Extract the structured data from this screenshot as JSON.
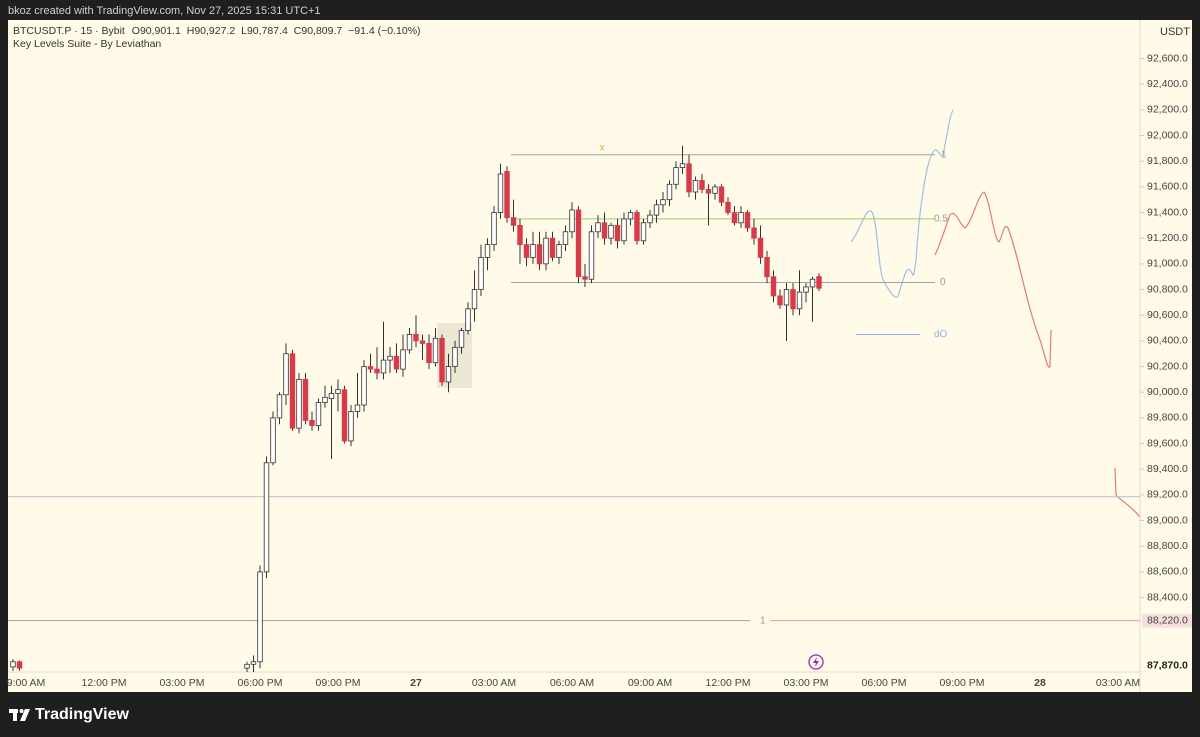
{
  "header": {
    "caption": "bkoz created with TradingView.com, Nov 27, 2025 15:31 UTC+1"
  },
  "footer": {
    "brand": "TradingView"
  },
  "chart_data": {
    "type": "candlestick",
    "symbol": "BTCUSDT.P · 15 · Bybit",
    "ohlc_legend": [
      {
        "key": "O",
        "text": "90,901.1"
      },
      {
        "key": "H",
        "text": "90,927.2"
      },
      {
        "key": "L",
        "text": "90,787.4"
      },
      {
        "key": "C",
        "text": "90,809.7"
      }
    ],
    "change": "−91.4 (−0.10%)",
    "indicator": "Key Levels Suite - By Leviathan",
    "currency": "USDT",
    "up_color": "#ffffff",
    "down_color": "#d93a4a",
    "wick_color": "#333333",
    "grid": false,
    "categories": [
      null,
      null,
      "9:00 AM",
      null,
      null,
      null,
      null,
      null,
      null,
      null,
      null,
      null,
      null,
      null,
      "12:00 PM",
      null,
      null,
      null,
      null,
      null,
      null,
      null,
      null,
      null,
      null,
      null,
      "03:00 PM",
      null,
      null,
      null,
      null,
      null,
      null,
      null,
      null,
      null,
      null,
      null,
      "06:00 PM",
      null,
      null,
      null,
      null,
      null,
      null,
      null,
      null,
      null,
      null,
      null,
      "09:00 PM",
      null,
      null,
      null,
      null,
      null,
      null,
      null,
      null,
      null,
      null,
      null,
      "27",
      null,
      null,
      null,
      null,
      null,
      null,
      null,
      null,
      null,
      null,
      null,
      "03:00 AM",
      null,
      null,
      null,
      null,
      null,
      null,
      null,
      null,
      null,
      null,
      null,
      "06:00 AM",
      null,
      null,
      null,
      null,
      null,
      null,
      null,
      null,
      null,
      null,
      null,
      "09:00 AM",
      null,
      null,
      null,
      null,
      null,
      null,
      null,
      null,
      null,
      null,
      null,
      "12:00 PM",
      null,
      null,
      null,
      null,
      null,
      null,
      null,
      null,
      null,
      null,
      null,
      "03:00 PM",
      null,
      null,
      null,
      null,
      null,
      null,
      null,
      null,
      null,
      null,
      null,
      "06:00 PM",
      null,
      null,
      null,
      null,
      null,
      null,
      null,
      null,
      null,
      null,
      null,
      "09:00 PM",
      null,
      null,
      null,
      null,
      null,
      null,
      null,
      null,
      null,
      null,
      null,
      "28",
      null,
      null,
      null,
      null,
      null,
      null,
      null,
      null,
      null,
      null,
      null,
      "03:00 AM",
      null,
      null
    ],
    "open": [
      87860,
      87900,
      null,
      null,
      null,
      null,
      null,
      null,
      null,
      null,
      null,
      null,
      null,
      null,
      null,
      null,
      null,
      null,
      null,
      null,
      null,
      null,
      null,
      null,
      null,
      null,
      null,
      null,
      null,
      null,
      null,
      null,
      null,
      null,
      null,
      null,
      87850,
      87880,
      87900,
      88600,
      89450,
      89800,
      89980,
      90300,
      89720,
      90100,
      89780,
      89740,
      89920,
      89950,
      89990,
      90020,
      89620,
      89850,
      89900,
      90200,
      90180,
      90150,
      90250,
      90280,
      90180,
      90330,
      90450,
      90400,
      90380,
      90230,
      90420,
      90080,
      90200,
      90350,
      90480,
      90650,
      90800,
      91050,
      91150,
      91400,
      91720,
      91360,
      91300,
      91150,
      91050,
      91150,
      91000,
      91200,
      91050,
      91150,
      91250,
      91420,
      90900,
      90880,
      91250,
      91320,
      91200,
      91300,
      91180,
      91350,
      91400,
      91180,
      91320,
      91380,
      91460,
      91500,
      91620,
      91750,
      91780,
      91560,
      91650,
      91580,
      91550,
      91600,
      91480,
      91400,
      91320,
      91400,
      91280,
      91200,
      91050,
      90900,
      90750,
      90680,
      90800,
      90650,
      90780,
      90820,
      90901.1,
      null,
      null,
      null,
      null,
      null,
      null,
      null,
      null,
      null,
      null,
      null,
      null,
      null,
      null,
      null,
      null,
      null,
      null,
      null,
      null,
      null,
      null,
      null,
      null,
      null,
      null,
      null,
      null,
      null,
      null,
      null,
      null,
      null,
      null,
      null,
      null,
      null,
      null,
      null,
      null,
      null,
      null,
      null,
      null,
      null,
      null,
      null,
      null
    ],
    "high": [
      87920,
      87910,
      null,
      null,
      null,
      null,
      null,
      null,
      null,
      null,
      null,
      null,
      null,
      null,
      null,
      null,
      null,
      null,
      null,
      null,
      null,
      null,
      null,
      null,
      null,
      null,
      null,
      null,
      null,
      null,
      null,
      null,
      null,
      null,
      null,
      null,
      87900,
      87950,
      88650,
      89500,
      89850,
      90000,
      90380,
      90330,
      90150,
      90150,
      89850,
      89950,
      90050,
      90050,
      90100,
      90050,
      89900,
      90150,
      90250,
      90300,
      90350,
      90550,
      90350,
      90380,
      90450,
      90500,
      90600,
      90450,
      90450,
      90500,
      90450,
      90300,
      90400,
      90500,
      90700,
      90950,
      91150,
      91200,
      91450,
      91780,
      91760,
      91500,
      91350,
      91200,
      91250,
      91250,
      91250,
      91250,
      91180,
      91300,
      91480,
      91450,
      91000,
      91300,
      91380,
      91400,
      91320,
      91350,
      91400,
      91420,
      91420,
      91350,
      91420,
      91500,
      91560,
      91650,
      91800,
      91920,
      91850,
      91680,
      91700,
      91620,
      91620,
      91620,
      91520,
      91450,
      91450,
      91420,
      91350,
      91300,
      91100,
      90950,
      90800,
      90850,
      90850,
      90950,
      90850,
      90900,
      90927.2,
      null,
      null,
      null,
      null,
      null,
      null,
      null,
      null,
      null,
      null,
      null,
      null,
      null,
      null,
      null,
      null,
      null,
      null,
      null,
      null,
      null,
      null,
      null,
      null,
      null,
      null,
      null,
      null,
      null,
      null,
      null,
      null,
      null,
      null,
      null,
      null,
      null,
      null,
      null,
      null,
      null,
      null,
      null,
      null,
      null,
      null,
      null,
      null
    ],
    "low": [
      87830,
      87830,
      null,
      null,
      null,
      null,
      null,
      null,
      null,
      null,
      null,
      null,
      null,
      null,
      null,
      null,
      null,
      null,
      null,
      null,
      null,
      null,
      null,
      null,
      null,
      null,
      null,
      null,
      null,
      null,
      null,
      null,
      null,
      null,
      null,
      null,
      87800,
      87780,
      87850,
      88550,
      89430,
      89750,
      89900,
      89700,
      89680,
      89750,
      89700,
      89700,
      89880,
      89480,
      89850,
      89600,
      89580,
      89800,
      89850,
      90150,
      90100,
      90100,
      90150,
      90150,
      90120,
      90300,
      90350,
      90250,
      90180,
      90200,
      90050,
      90000,
      90150,
      90300,
      90450,
      90550,
      90750,
      90950,
      91100,
      91350,
      91320,
      91250,
      91000,
      90980,
      91000,
      90950,
      90950,
      91020,
      91000,
      91100,
      91200,
      90850,
      90820,
      90850,
      91200,
      91150,
      91150,
      91120,
      91150,
      91300,
      91150,
      91150,
      91280,
      91320,
      91400,
      91450,
      91580,
      91700,
      91520,
      91500,
      91550,
      91300,
      91500,
      91450,
      91380,
      91300,
      91280,
      91250,
      91150,
      91000,
      90850,
      90700,
      90650,
      90400,
      90600,
      90600,
      90700,
      90550,
      90787.4,
      null,
      null,
      null,
      null,
      null,
      null,
      null,
      null,
      null,
      null,
      null,
      null,
      null,
      null,
      null,
      null,
      null,
      null,
      null,
      null,
      null,
      null,
      null,
      null,
      null,
      null,
      null,
      null,
      null,
      null,
      null,
      null,
      null,
      null,
      null,
      null,
      null,
      null,
      null,
      null,
      null,
      null,
      null,
      null,
      null,
      null,
      null,
      null
    ],
    "close": [
      87900,
      87850,
      null,
      null,
      null,
      null,
      null,
      null,
      null,
      null,
      null,
      null,
      null,
      null,
      null,
      null,
      null,
      null,
      null,
      null,
      null,
      null,
      null,
      null,
      null,
      null,
      null,
      null,
      null,
      null,
      null,
      null,
      null,
      null,
      null,
      null,
      87880,
      87900,
      88600,
      89450,
      89800,
      89980,
      90300,
      89720,
      90100,
      89780,
      89740,
      89920,
      89960,
      89990,
      90020,
      89620,
      89850,
      89900,
      90200,
      90180,
      90150,
      90250,
      90280,
      90180,
      90330,
      90450,
      90400,
      90380,
      90230,
      90420,
      90080,
      90200,
      90350,
      90480,
      90650,
      90800,
      91050,
      91150,
      91400,
      91700,
      91360,
      91300,
      91150,
      91050,
      91150,
      91000,
      91200,
      91050,
      91150,
      91250,
      91420,
      90900,
      90880,
      91250,
      91320,
      91200,
      91300,
      91180,
      91350,
      91400,
      91180,
      91320,
      91380,
      91460,
      91500,
      91620,
      91750,
      91780,
      91560,
      91650,
      91580,
      91550,
      91600,
      91480,
      91400,
      91320,
      91400,
      91280,
      91200,
      91050,
      90900,
      90750,
      90680,
      90800,
      90650,
      90780,
      90820,
      90880,
      90809.7,
      null,
      null,
      null,
      null,
      null,
      null,
      null,
      null,
      null,
      null,
      null,
      null,
      null,
      null,
      null,
      null,
      null,
      null,
      null,
      null,
      null,
      null,
      null,
      null,
      null,
      null,
      null,
      null,
      null,
      null,
      null,
      null,
      null,
      null,
      null,
      null,
      null,
      null,
      null,
      null,
      null,
      null,
      null,
      null,
      null,
      null,
      null,
      null
    ],
    "ylim": [
      87820,
      92900
    ],
    "yticks": [
      {
        "value": 92600,
        "label": "92,600.0"
      },
      {
        "value": 92400,
        "label": "92,400.0"
      },
      {
        "value": 92200,
        "label": "92,200.0"
      },
      {
        "value": 92000,
        "label": "92,000.0"
      },
      {
        "value": 91800,
        "label": "91,800.0"
      },
      {
        "value": 91600,
        "label": "91,600.0"
      },
      {
        "value": 91400,
        "label": "91,400.0"
      },
      {
        "value": 91200,
        "label": "91,200.0"
      },
      {
        "value": 91000,
        "label": "91,000.0"
      },
      {
        "value": 90800,
        "label": "90,800.0"
      },
      {
        "value": 90600,
        "label": "90,600.0"
      },
      {
        "value": 90400,
        "label": "90,400.0"
      },
      {
        "value": 90200,
        "label": "90,200.0"
      },
      {
        "value": 90000,
        "label": "90,000.0"
      },
      {
        "value": 89800,
        "label": "89,800.0"
      },
      {
        "value": 89600,
        "label": "89,600.0"
      },
      {
        "value": 89400,
        "label": "89,400.0"
      },
      {
        "value": 89200,
        "label": "89,200.0"
      },
      {
        "value": 89000,
        "label": "89,000.0"
      },
      {
        "value": 88800,
        "label": "88,800.0"
      },
      {
        "value": 88600,
        "label": "88,600.0"
      },
      {
        "value": 88400,
        "label": "88,400.0"
      }
    ],
    "price_labels": [
      {
        "value": 88220,
        "label": "88,220.0"
      },
      {
        "value": 87870,
        "label": "87,870.0"
      }
    ],
    "levels": [
      {
        "label": "1",
        "value": 91850,
        "color": "#a0a0a0"
      },
      {
        "label": "0.5",
        "value": 91350,
        "color": "#9ccc65"
      },
      {
        "label": "0",
        "value": 90855,
        "color": "#a0a0a0"
      },
      {
        "label": "dO",
        "value": 90450,
        "color": "#90b4e8"
      },
      {
        "label": "1",
        "value": 88220,
        "color": "#a0a0a0"
      }
    ],
    "range_marker": "x",
    "lines": [
      {
        "value": 89185,
        "color": "#b8bdcc"
      }
    ]
  }
}
